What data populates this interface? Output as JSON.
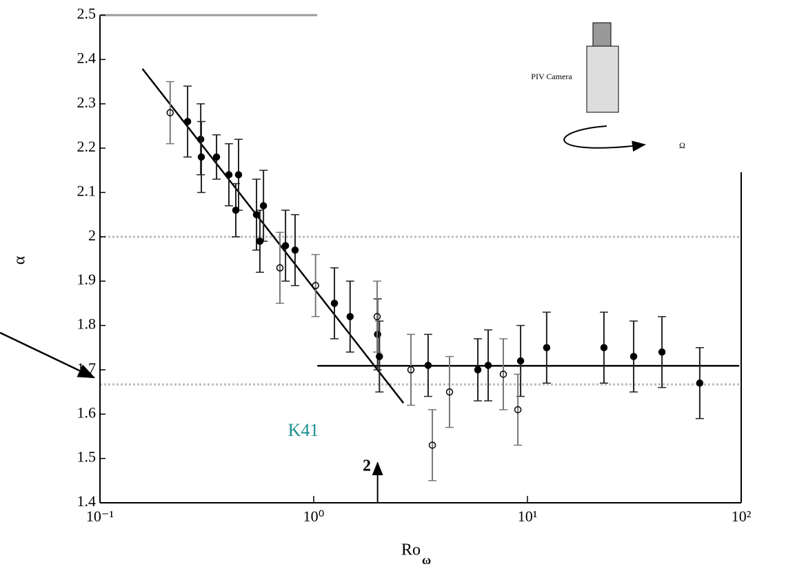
{
  "chart_data": {
    "type": "scatter",
    "xlabel": "Ro",
    "xlabel_sub": "ω",
    "ylabel": "α",
    "xscale": "log",
    "xlim": [
      0.1,
      100
    ],
    "ylim": [
      1.4,
      2.5
    ],
    "xticks": [
      {
        "value": 0.1,
        "label": "10⁻¹"
      },
      {
        "value": 1,
        "label": "10⁰"
      },
      {
        "value": 10,
        "label": "10¹"
      },
      {
        "value": 100,
        "label": "10²"
      }
    ],
    "yticks": [
      1.4,
      1.5,
      1.6,
      1.7,
      1.8,
      1.9,
      2,
      2.1,
      2.2,
      2.3,
      2.4,
      2.5
    ],
    "series": [
      {
        "fill": "#000000",
        "x": [
          0.257,
          0.296,
          0.298,
          0.351,
          0.401,
          0.445,
          0.432,
          0.54,
          0.582,
          0.56,
          0.738,
          0.818,
          1.25,
          1.48,
          1.99,
          2.03,
          3.43,
          5.86,
          6.55,
          9.29,
          12.3,
          22.8,
          31.4,
          42.6,
          64.0
        ],
        "y": [
          2.26,
          2.22,
          2.18,
          2.18,
          2.14,
          2.14,
          2.06,
          2.05,
          2.07,
          1.99,
          1.98,
          1.97,
          1.85,
          1.82,
          1.78,
          1.73,
          1.71,
          1.7,
          1.71,
          1.72,
          1.75,
          1.75,
          1.73,
          1.74,
          1.67
        ],
        "err": [
          0.08,
          0.08,
          0.08,
          0.05,
          0.07,
          0.08,
          0.06,
          0.08,
          0.08,
          0.07,
          0.08,
          0.08,
          0.08,
          0.08,
          0.08,
          0.08,
          0.07,
          0.07,
          0.08,
          0.08,
          0.08,
          0.08,
          0.08,
          0.08,
          0.08
        ]
      },
      {
        "fill": "none",
        "x": [
          0.213,
          0.695,
          1.02,
          1.98,
          2.85,
          3.59,
          4.32,
          7.71,
          9.02
        ],
        "y": [
          2.28,
          1.93,
          1.89,
          1.82,
          1.7,
          1.53,
          1.65,
          1.69,
          1.61
        ],
        "err": [
          0.07,
          0.08,
          0.07,
          0.08,
          0.08,
          0.08,
          0.08,
          0.08,
          0.08
        ]
      }
    ],
    "fit_lines": [
      {
        "x": [
          0.158,
          2.63
        ],
        "y": [
          2.379,
          1.625
        ]
      },
      {
        "x": [
          1.04,
          98
        ],
        "y": [
          1.709,
          1.709
        ]
      }
    ],
    "hlines": [
      2,
      1.667
    ],
    "annotations": {
      "k41": "K41",
      "arrow_label": "2",
      "camera": "PIV Camera",
      "omega": "Ω"
    }
  }
}
